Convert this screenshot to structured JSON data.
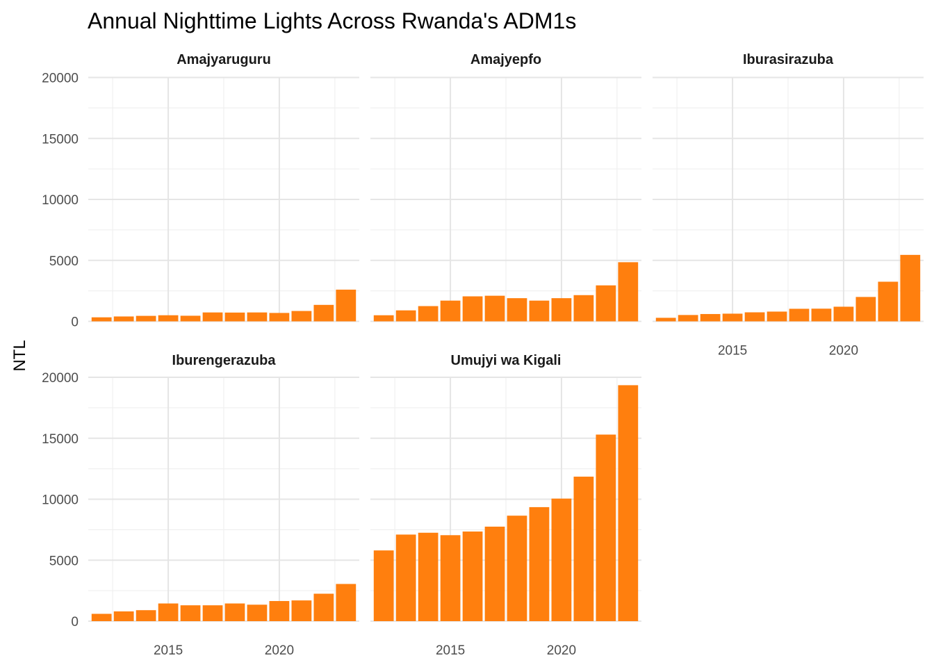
{
  "chart_data": {
    "type": "bar",
    "title": "Annual Nighttime Lights Across Rwanda's ADM1s",
    "ylabel": "NTL",
    "xlabel": "",
    "bar_color": "#FF7F0E",
    "x": [
      2012,
      2013,
      2014,
      2015,
      2016,
      2017,
      2018,
      2019,
      2020,
      2021,
      2022,
      2023
    ],
    "xlim": [
      2011.4,
      2023.6
    ],
    "ylim": [
      0,
      20000
    ],
    "y_ticks": [
      0,
      5000,
      10000,
      15000,
      20000
    ],
    "y_tick_labels": [
      "0",
      "5000",
      "10000",
      "15000",
      "20000"
    ],
    "x_ticks": [
      2015,
      2020
    ],
    "x_tick_labels": [
      "2015",
      "2020"
    ],
    "grid": true,
    "facets": [
      {
        "name": "Amajyaruguru",
        "values": [
          330,
          400,
          450,
          500,
          460,
          730,
          720,
          730,
          690,
          850,
          1350,
          2600
        ]
      },
      {
        "name": "Amajyepfo",
        "values": [
          500,
          900,
          1250,
          1700,
          2050,
          2100,
          1900,
          1700,
          1900,
          2150,
          2950,
          4850
        ]
      },
      {
        "name": "Iburasirazuba",
        "values": [
          290,
          520,
          600,
          630,
          740,
          800,
          1030,
          1040,
          1200,
          2000,
          3250,
          5450
        ]
      },
      {
        "name": "Iburengerazuba",
        "values": [
          600,
          800,
          900,
          1450,
          1300,
          1300,
          1450,
          1350,
          1650,
          1700,
          2250,
          3050
        ]
      },
      {
        "name": "Umujyi wa Kigali",
        "values": [
          5800,
          7100,
          7250,
          7050,
          7350,
          7750,
          8650,
          9350,
          10050,
          11850,
          15300,
          19350
        ]
      }
    ]
  }
}
